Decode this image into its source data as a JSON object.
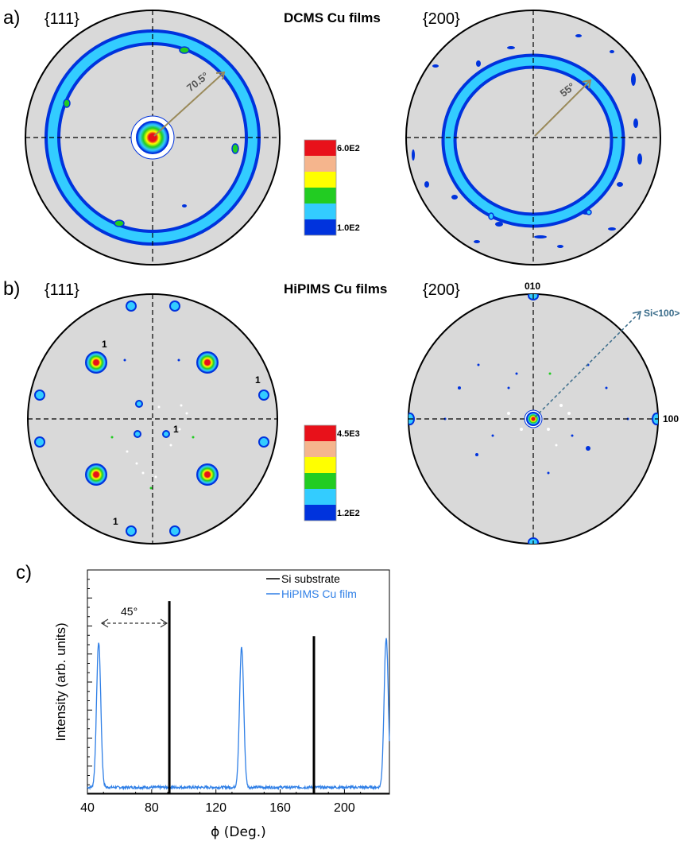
{
  "panels": {
    "a": {
      "label": "a)",
      "title": "DCMS Cu films",
      "pole_left": "{111}",
      "pole_right": "{200}",
      "angle_left": "70.5°",
      "angle_right": "55°",
      "legend_max": "6.0E2",
      "legend_min": "1.0E2"
    },
    "b": {
      "label": "b)",
      "title": "HiPIMS Cu films",
      "pole_left": "{111}",
      "pole_right": "{200}",
      "marker": "1",
      "label_010": "010",
      "label_100": "100",
      "arrow_label": "Si<100>",
      "legend_max": "4.5E3",
      "legend_min": "1.2E2"
    },
    "c": {
      "label": "c)"
    }
  },
  "colors": {
    "pole_background": "#d9d9d9",
    "scale": [
      "#e8111a",
      "#f5b58d",
      "#ffff00",
      "#22cc22",
      "#33ccff",
      "#0033dd"
    ],
    "si_line": "#000000",
    "cu_line": "#2f7fe6",
    "angle_arrow": "#9a8a5a",
    "si_arrow": "#3a6c8a"
  },
  "chart_data": {
    "type": "line",
    "xlabel": "ϕ (Deg.)",
    "ylabel": "Intensity (arb. units)",
    "xlim": [
      40,
      228
    ],
    "xticks": [
      40,
      80,
      120,
      160,
      200
    ],
    "annotation": "45°",
    "legend_position": "top-right",
    "series": [
      {
        "name": "Si substrate",
        "color": "#000000",
        "peaks": [
          {
            "x": 91,
            "height": 0.88
          },
          {
            "x": 181,
            "height": 0.72
          }
        ]
      },
      {
        "name": "HiPIMS Cu film",
        "color": "#2f7fe6",
        "peaks": [
          {
            "x": 47,
            "height": 0.66
          },
          {
            "x": 136,
            "height": 0.64
          },
          {
            "x": 226,
            "height": 0.68
          }
        ]
      }
    ]
  }
}
